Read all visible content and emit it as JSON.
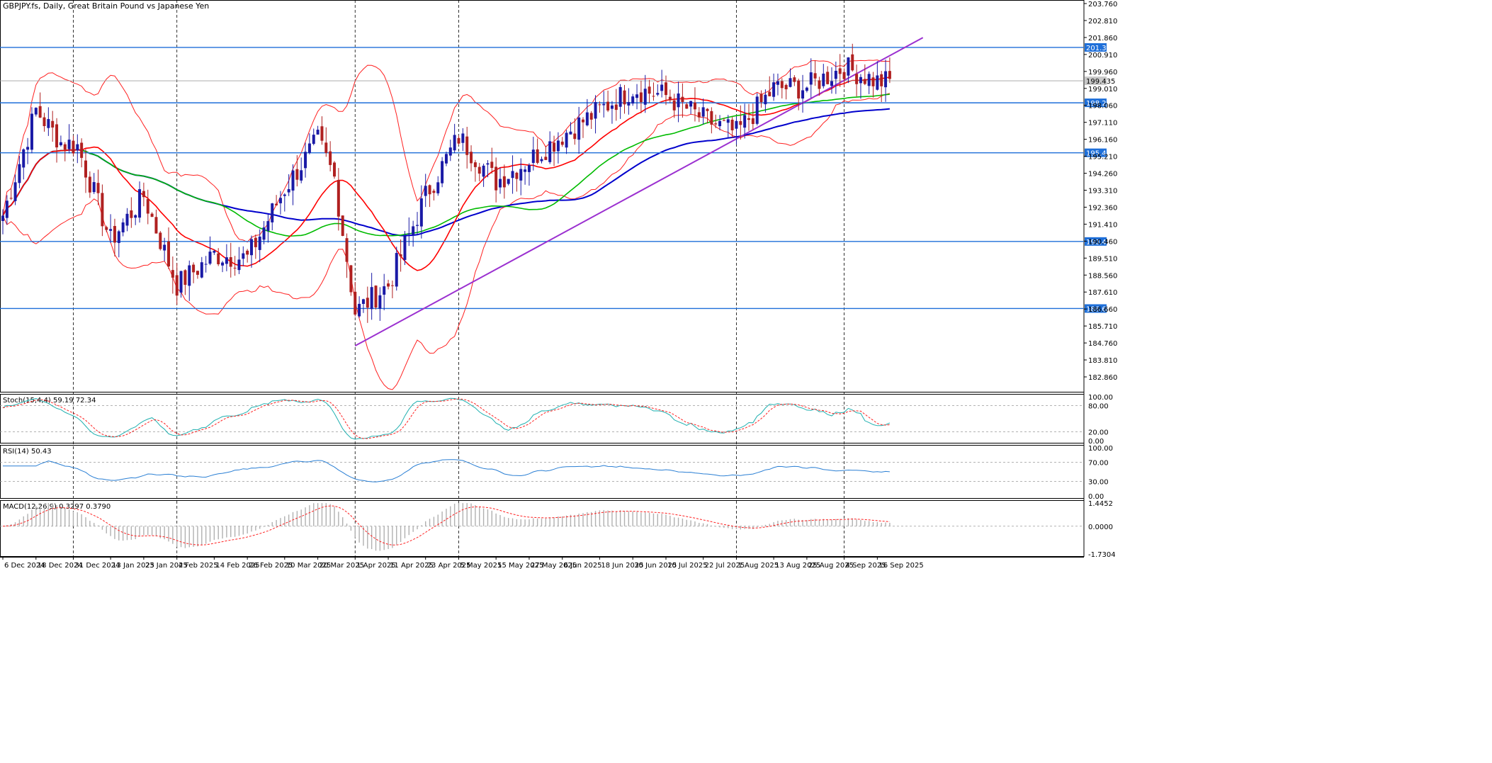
{
  "header": {
    "symbol": "GBPJPY.fs",
    "timeframe": "Daily",
    "description": "Great Britain Pound vs Japanese Yen",
    "separator": ","
  },
  "colors": {
    "bull_candle": "#1a1aa6",
    "bear_candle": "#b02020",
    "bollinger": "#ff2020",
    "ma_fast": "#ff0000",
    "ma_mid": "#00bb00",
    "ma_slow": "#0000cc",
    "trendline": "#9b30d0",
    "hline": "#1e6fd9",
    "hline_label_bg": "#1e6fd9",
    "current_price_line": "#a0a0a0",
    "stoch_main": "#20b0b0",
    "stoch_signal": "#ff2020",
    "rsi": "#2a7fd4",
    "macd_hist": "#b0b0b0",
    "macd_signal": "#ff2020"
  },
  "price_axis": {
    "min": 182.86,
    "max": 203.76,
    "ticks": [
      "203.760",
      "202.810",
      "201.860",
      "200.910",
      "199.960",
      "199.010",
      "198.060",
      "197.110",
      "196.160",
      "195.210",
      "194.260",
      "193.310",
      "192.360",
      "191.410",
      "190.460",
      "189.510",
      "188.560",
      "187.610",
      "186.660",
      "185.710",
      "184.760",
      "183.810",
      "182.860"
    ],
    "tick_values": [
      203.76,
      202.81,
      201.86,
      200.91,
      199.96,
      199.01,
      198.06,
      197.11,
      196.16,
      195.21,
      194.26,
      193.31,
      192.36,
      191.41,
      190.46,
      189.51,
      188.56,
      187.61,
      186.66,
      185.71,
      184.76,
      183.81,
      182.86
    ]
  },
  "horizontal_levels": [
    {
      "value": 201.304,
      "label": "201.304"
    },
    {
      "value": 198.203,
      "label": "198.203"
    },
    {
      "value": 195.406,
      "label": "195.406"
    },
    {
      "value": 190.441,
      "label": "190.441"
    },
    {
      "value": 186.688,
      "label": "186.688"
    }
  ],
  "current_price": {
    "value": 199.435,
    "label": "199.435"
  },
  "time_axis": {
    "labels": [
      "6 Dec 2024",
      "18 Dec 2024",
      "31 Dec 2024",
      "13 Jan 2025",
      "23 Jan 2025",
      "4 Feb 2025",
      "14 Feb 2025",
      "26 Feb 2025",
      "10 Mar 2025",
      "20 Mar 2025",
      "1 Apr 2025",
      "11 Apr 2025",
      "23 Apr 2025",
      "5 May 2025",
      "15 May 2025",
      "27 May 2025",
      "6 Jun 2025",
      "18 Jun 2025",
      "30 Jun 2025",
      "10 Jul 2025",
      "22 Jul 2025",
      "1 Aug 2025",
      "13 Aug 2025",
      "25 Aug 2025",
      "4 Sep 2025",
      "16 Sep 2025"
    ],
    "positions": [
      0,
      8,
      17,
      26,
      34,
      42,
      51,
      59,
      68,
      76,
      85,
      93,
      102,
      110,
      119,
      127,
      135,
      144,
      152,
      160,
      169,
      177,
      186,
      194,
      203,
      211
    ],
    "separator_positions": [
      17,
      42,
      85,
      110,
      177,
      203
    ]
  },
  "chart_data": {
    "type": "candlestick",
    "bars_visible": 215,
    "trendline": {
      "x1_bar": 85,
      "y1": 184.6,
      "x2_bar": 222,
      "y2": 201.85
    },
    "candles": [],
    "ohlc_keypoints": [
      {
        "bar": 0,
        "close": 191.9
      },
      {
        "bar": 8,
        "close": 197.8
      },
      {
        "bar": 14,
        "close": 196.0
      },
      {
        "bar": 18,
        "close": 195.8
      },
      {
        "bar": 26,
        "close": 190.5
      },
      {
        "bar": 34,
        "close": 193.0
      },
      {
        "bar": 42,
        "close": 188.0
      },
      {
        "bar": 51,
        "close": 189.7
      },
      {
        "bar": 59,
        "close": 189.5
      },
      {
        "bar": 68,
        "close": 193.4
      },
      {
        "bar": 76,
        "close": 196.1
      },
      {
        "bar": 80,
        "close": 194.0
      },
      {
        "bar": 85,
        "close": 186.5
      },
      {
        "bar": 93,
        "close": 188.0
      },
      {
        "bar": 102,
        "close": 193.0
      },
      {
        "bar": 110,
        "close": 196.3
      },
      {
        "bar": 119,
        "close": 193.8
      },
      {
        "bar": 127,
        "close": 195.0
      },
      {
        "bar": 135,
        "close": 196.4
      },
      {
        "bar": 144,
        "close": 197.8
      },
      {
        "bar": 152,
        "close": 199.0
      },
      {
        "bar": 160,
        "close": 198.6
      },
      {
        "bar": 169,
        "close": 197.3
      },
      {
        "bar": 177,
        "close": 196.5
      },
      {
        "bar": 186,
        "close": 199.0
      },
      {
        "bar": 194,
        "close": 199.1
      },
      {
        "bar": 203,
        "close": 200.2
      },
      {
        "bar": 211,
        "close": 199.4
      }
    ],
    "indicators": {
      "stoch": {
        "label": "Stoch(15,4,4) 59.19 72.34",
        "levels": [
          "100.00",
          "80.00",
          "20.00",
          "0.00"
        ],
        "level_values": [
          100,
          80,
          20,
          0
        ]
      },
      "rsi": {
        "label": "RSI(14) 50.43",
        "levels": [
          "100.00",
          "70.00",
          "30.00",
          "0.00"
        ],
        "level_values": [
          100,
          70,
          30,
          0
        ]
      },
      "macd": {
        "label": "MACD(12,26,9) 0.3297 0.3790",
        "levels": [
          "1.4452",
          "0.0000",
          "-1.7304"
        ],
        "level_values": [
          1.4452,
          0,
          -1.7304
        ]
      }
    }
  }
}
